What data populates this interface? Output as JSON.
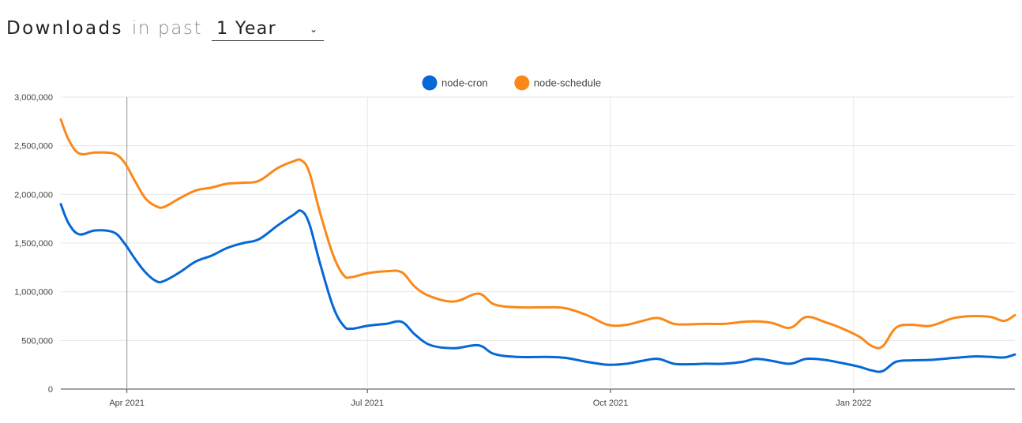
{
  "header": {
    "title": "Downloads",
    "subtitle": "in past",
    "range_selected": "1 Year"
  },
  "chart_data": {
    "type": "line",
    "title": "",
    "xlabel": "",
    "ylabel": "",
    "ylim": [
      0,
      3000000
    ],
    "y_ticks": [
      0,
      500000,
      1000000,
      1500000,
      2000000,
      2500000,
      3000000
    ],
    "y_tick_labels": [
      "0",
      "500,000",
      "1,000,000",
      "1,500,000",
      "2,000,000",
      "2,500,000",
      "3,000,000"
    ],
    "x_range": [
      "2021-03-07",
      "2022-03-03"
    ],
    "x_ticks": [
      {
        "date": "2021-04-01",
        "label": "Apr 2021"
      },
      {
        "date": "2021-07-01",
        "label": "Jul 2021"
      },
      {
        "date": "2021-10-01",
        "label": "Oct 2021"
      },
      {
        "date": "2022-01-01",
        "label": "Jan 2022"
      }
    ],
    "legend": {
      "position": "top-center"
    },
    "series": [
      {
        "name": "node-cron",
        "color": "#0568d6",
        "points": [
          [
            "2021-03-07",
            1900000
          ],
          [
            "2021-03-10",
            1700000
          ],
          [
            "2021-03-14",
            1590000
          ],
          [
            "2021-03-20",
            1630000
          ],
          [
            "2021-03-27",
            1610000
          ],
          [
            "2021-03-31",
            1500000
          ],
          [
            "2021-04-04",
            1340000
          ],
          [
            "2021-04-08",
            1200000
          ],
          [
            "2021-04-12",
            1110000
          ],
          [
            "2021-04-15",
            1110000
          ],
          [
            "2021-04-21",
            1200000
          ],
          [
            "2021-04-27",
            1310000
          ],
          [
            "2021-05-03",
            1370000
          ],
          [
            "2021-05-09",
            1450000
          ],
          [
            "2021-05-15",
            1500000
          ],
          [
            "2021-05-21",
            1540000
          ],
          [
            "2021-05-28",
            1680000
          ],
          [
            "2021-06-03",
            1790000
          ],
          [
            "2021-06-06",
            1830000
          ],
          [
            "2021-06-09",
            1700000
          ],
          [
            "2021-06-13",
            1300000
          ],
          [
            "2021-06-18",
            850000
          ],
          [
            "2021-06-22",
            650000
          ],
          [
            "2021-06-25",
            620000
          ],
          [
            "2021-07-01",
            650000
          ],
          [
            "2021-07-08",
            670000
          ],
          [
            "2021-07-14",
            690000
          ],
          [
            "2021-07-19",
            560000
          ],
          [
            "2021-07-25",
            450000
          ],
          [
            "2021-08-03",
            420000
          ],
          [
            "2021-08-12",
            450000
          ],
          [
            "2021-08-18",
            360000
          ],
          [
            "2021-08-27",
            330000
          ],
          [
            "2021-09-07",
            330000
          ],
          [
            "2021-09-14",
            320000
          ],
          [
            "2021-09-22",
            280000
          ],
          [
            "2021-09-30",
            250000
          ],
          [
            "2021-10-07",
            260000
          ],
          [
            "2021-10-13",
            290000
          ],
          [
            "2021-10-19",
            310000
          ],
          [
            "2021-10-25",
            260000
          ],
          [
            "2021-10-31",
            255000
          ],
          [
            "2021-11-06",
            260000
          ],
          [
            "2021-11-13",
            260000
          ],
          [
            "2021-11-20",
            280000
          ],
          [
            "2021-11-25",
            310000
          ],
          [
            "2021-12-01",
            290000
          ],
          [
            "2021-12-08",
            260000
          ],
          [
            "2021-12-14",
            310000
          ],
          [
            "2021-12-21",
            300000
          ],
          [
            "2021-12-27",
            270000
          ],
          [
            "2022-01-03",
            230000
          ],
          [
            "2022-01-08",
            190000
          ],
          [
            "2022-01-12",
            185000
          ],
          [
            "2022-01-17",
            280000
          ],
          [
            "2022-01-23",
            295000
          ],
          [
            "2022-01-30",
            300000
          ],
          [
            "2022-02-08",
            320000
          ],
          [
            "2022-02-16",
            335000
          ],
          [
            "2022-02-22",
            330000
          ],
          [
            "2022-02-27",
            325000
          ],
          [
            "2022-03-03",
            355000
          ]
        ]
      },
      {
        "name": "node-schedule",
        "color": "#fb8817",
        "points": [
          [
            "2021-03-07",
            2770000
          ],
          [
            "2021-03-10",
            2560000
          ],
          [
            "2021-03-14",
            2420000
          ],
          [
            "2021-03-20",
            2430000
          ],
          [
            "2021-03-27",
            2420000
          ],
          [
            "2021-03-31",
            2330000
          ],
          [
            "2021-04-04",
            2140000
          ],
          [
            "2021-04-08",
            1960000
          ],
          [
            "2021-04-12",
            1880000
          ],
          [
            "2021-04-15",
            1870000
          ],
          [
            "2021-04-21",
            1960000
          ],
          [
            "2021-04-27",
            2040000
          ],
          [
            "2021-05-03",
            2070000
          ],
          [
            "2021-05-09",
            2110000
          ],
          [
            "2021-05-15",
            2120000
          ],
          [
            "2021-05-21",
            2140000
          ],
          [
            "2021-05-28",
            2270000
          ],
          [
            "2021-06-03",
            2340000
          ],
          [
            "2021-06-06",
            2350000
          ],
          [
            "2021-06-09",
            2230000
          ],
          [
            "2021-06-13",
            1820000
          ],
          [
            "2021-06-18",
            1380000
          ],
          [
            "2021-06-22",
            1170000
          ],
          [
            "2021-06-25",
            1150000
          ],
          [
            "2021-07-01",
            1190000
          ],
          [
            "2021-07-08",
            1210000
          ],
          [
            "2021-07-14",
            1200000
          ],
          [
            "2021-07-19",
            1050000
          ],
          [
            "2021-07-25",
            950000
          ],
          [
            "2021-08-03",
            900000
          ],
          [
            "2021-08-12",
            980000
          ],
          [
            "2021-08-18",
            870000
          ],
          [
            "2021-08-27",
            840000
          ],
          [
            "2021-09-07",
            840000
          ],
          [
            "2021-09-14",
            830000
          ],
          [
            "2021-09-22",
            760000
          ],
          [
            "2021-09-30",
            660000
          ],
          [
            "2021-10-07",
            660000
          ],
          [
            "2021-10-13",
            700000
          ],
          [
            "2021-10-19",
            730000
          ],
          [
            "2021-10-25",
            670000
          ],
          [
            "2021-10-31",
            665000
          ],
          [
            "2021-11-06",
            670000
          ],
          [
            "2021-11-13",
            670000
          ],
          [
            "2021-11-20",
            690000
          ],
          [
            "2021-11-25",
            695000
          ],
          [
            "2021-12-01",
            680000
          ],
          [
            "2021-12-08",
            630000
          ],
          [
            "2021-12-14",
            740000
          ],
          [
            "2021-12-21",
            690000
          ],
          [
            "2021-12-27",
            630000
          ],
          [
            "2022-01-03",
            540000
          ],
          [
            "2022-01-08",
            440000
          ],
          [
            "2022-01-12",
            440000
          ],
          [
            "2022-01-17",
            630000
          ],
          [
            "2022-01-23",
            660000
          ],
          [
            "2022-01-30",
            650000
          ],
          [
            "2022-02-08",
            730000
          ],
          [
            "2022-02-16",
            750000
          ],
          [
            "2022-02-22",
            740000
          ],
          [
            "2022-02-27",
            700000
          ],
          [
            "2022-03-03",
            760000
          ]
        ]
      }
    ]
  }
}
